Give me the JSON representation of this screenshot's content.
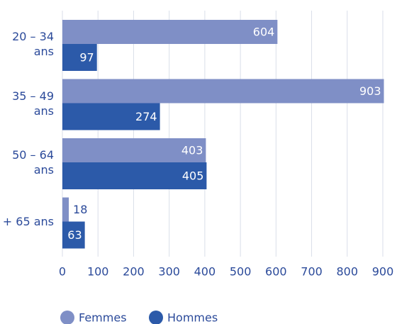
{
  "chart_data": {
    "type": "barh",
    "categories": [
      "20 – 34 ans",
      "35 – 49 ans",
      "50 – 64 ans",
      "+ 65 ans"
    ],
    "series": [
      {
        "name": "Femmes",
        "color": "#7f8fc6",
        "values": [
          604,
          903,
          403,
          18
        ]
      },
      {
        "name": "Hommes",
        "color": "#2c5aa9",
        "values": [
          97,
          274,
          405,
          63
        ]
      }
    ],
    "xlim": [
      0,
      900
    ],
    "xticks": [
      0,
      100,
      200,
      300,
      400,
      500,
      600,
      700,
      800,
      900
    ],
    "grid": true,
    "legend": "bottom"
  }
}
